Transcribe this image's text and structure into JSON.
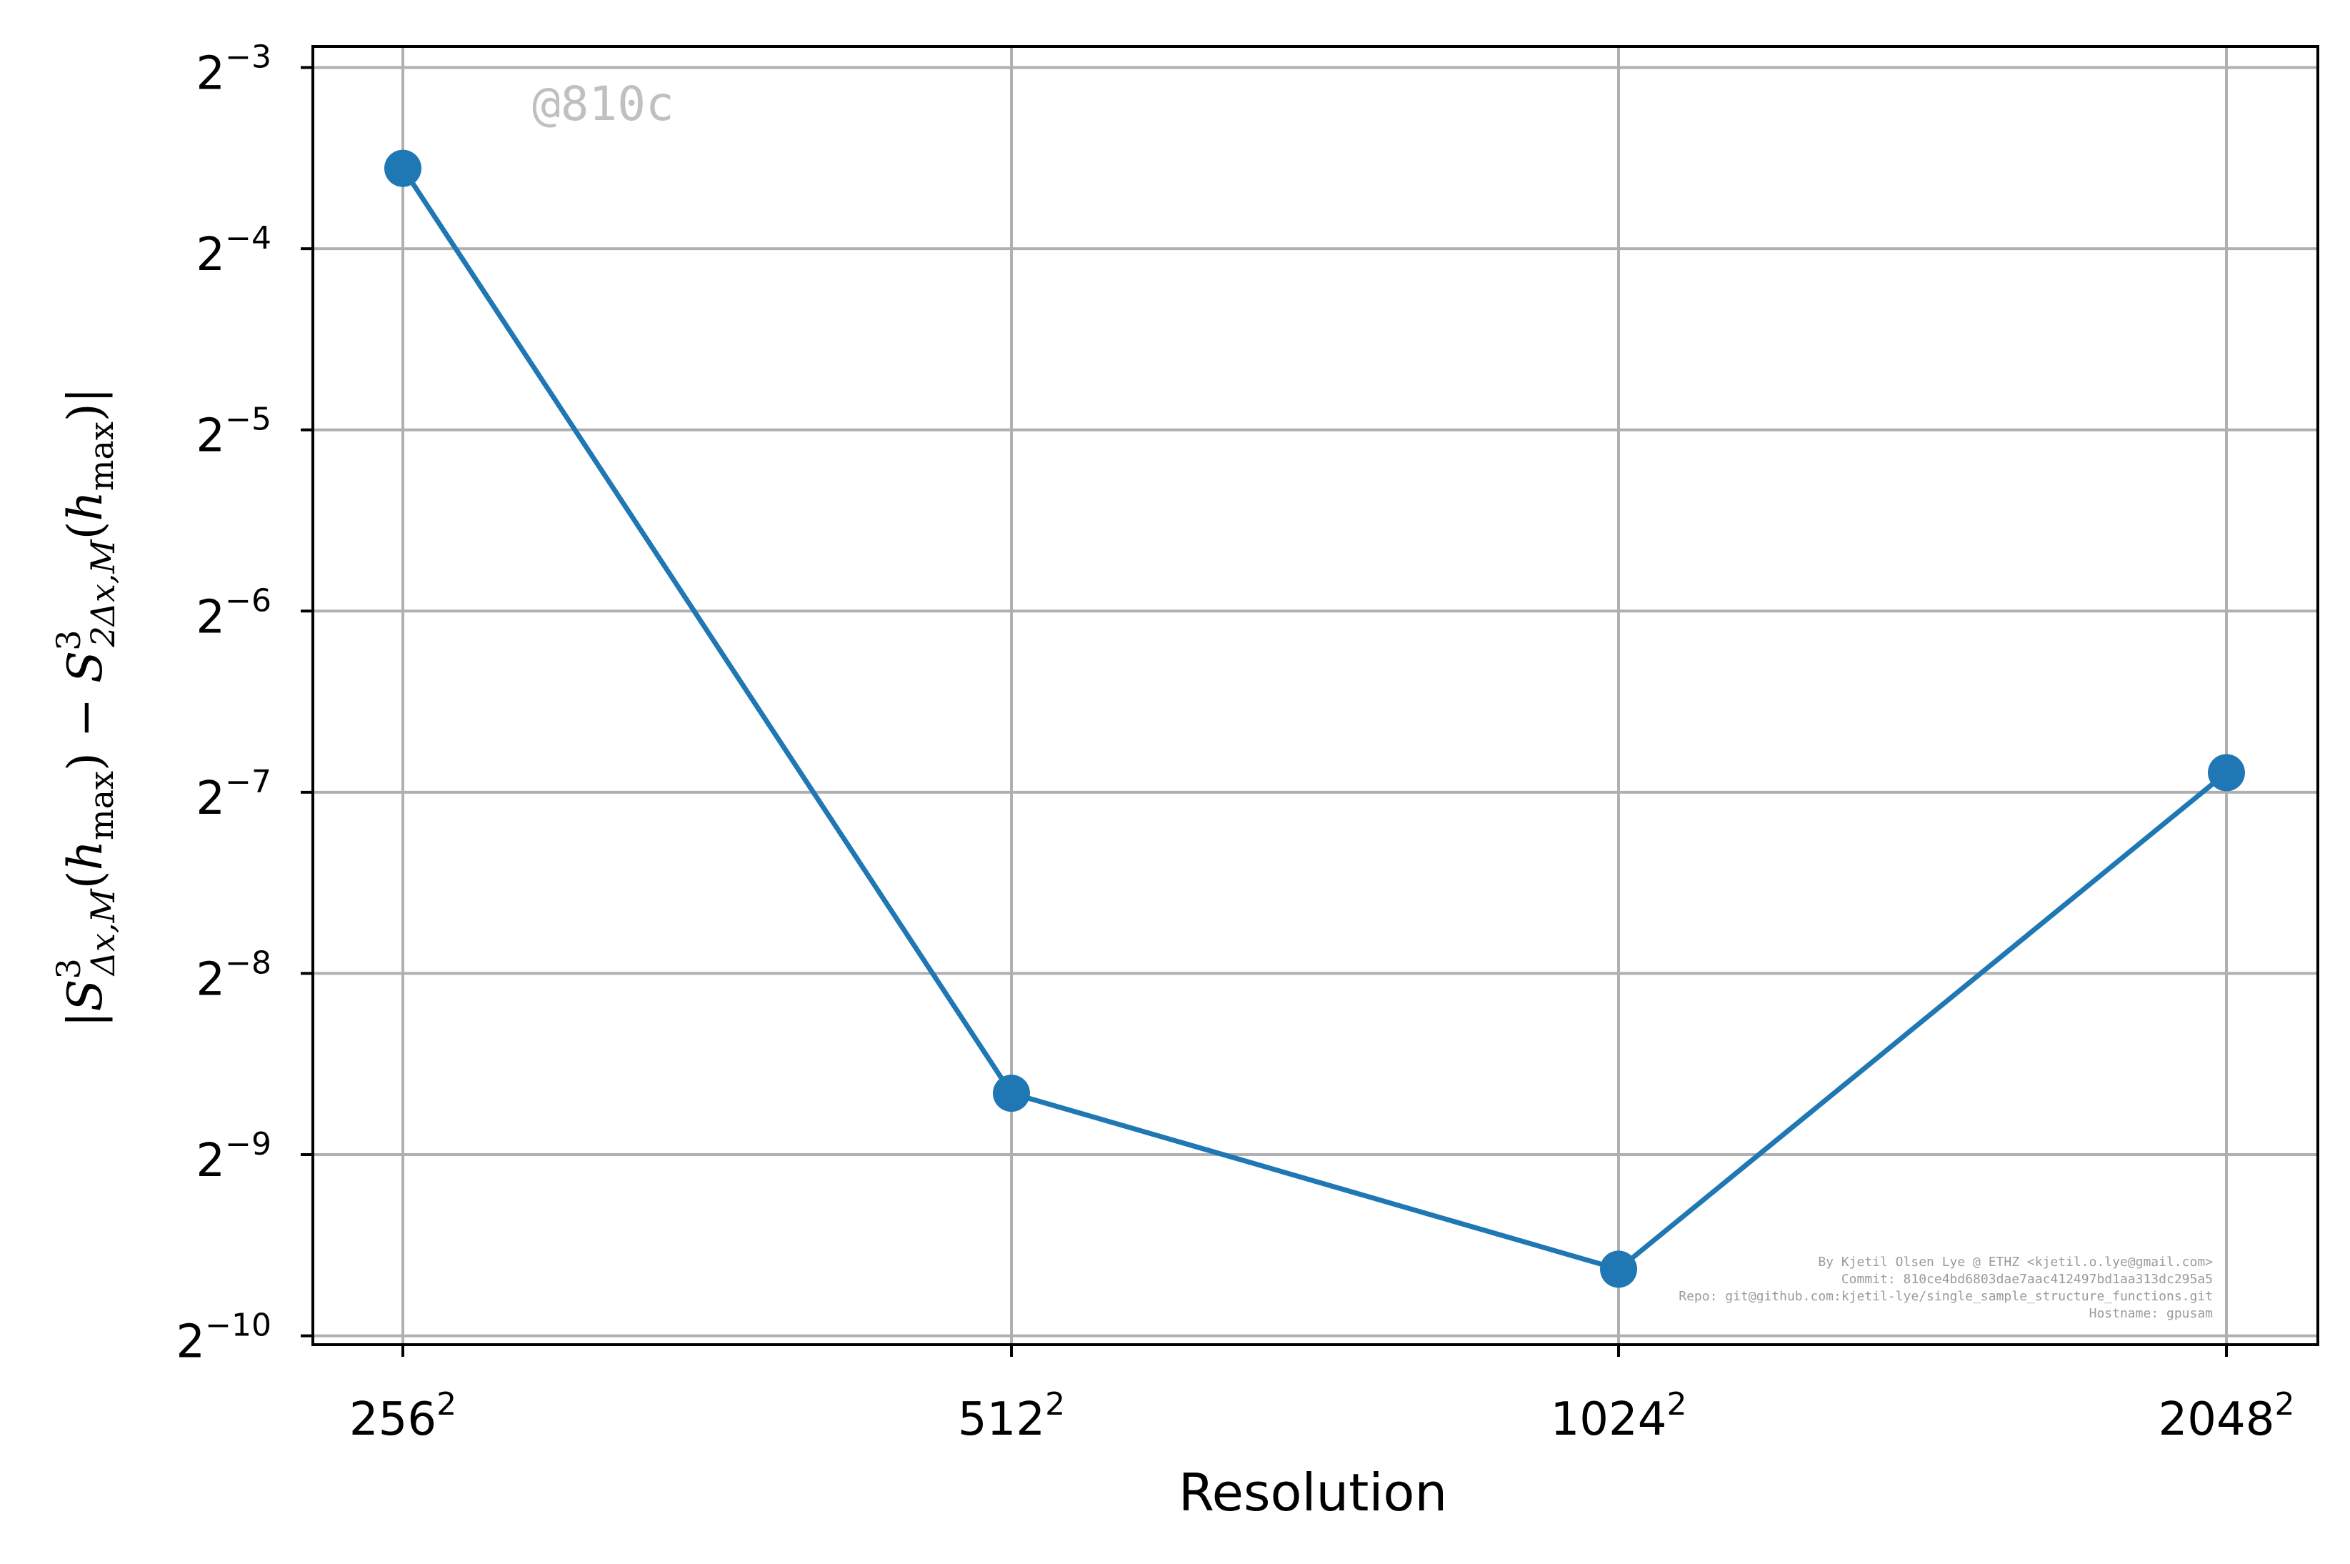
{
  "chart_data": {
    "type": "line",
    "title": "",
    "xlabel": "Resolution",
    "ylabel": "|S³_{Δx,M}(h_max) − S³_{2Δx,M}(h_max)|",
    "x_scale": "categorical",
    "y_scale": "log2",
    "categories": [
      "256²",
      "512²",
      "1024²",
      "2048²"
    ],
    "x_tick_labels": [
      {
        "base": "256",
        "exp": "2"
      },
      {
        "base": "512",
        "exp": "2"
      },
      {
        "base": "1024",
        "exp": "2"
      },
      {
        "base": "2048",
        "exp": "2"
      }
    ],
    "series": [
      {
        "values": [
          0.085,
          0.00247,
          0.00126,
          0.00842
        ],
        "color": "#1f77b4",
        "marker": "circle"
      }
    ],
    "ylim": [
      0.000944,
      0.1355
    ],
    "y_ticks": [
      {
        "value": 0.125,
        "base": "2",
        "exp": "−3"
      },
      {
        "value": 0.0625,
        "base": "2",
        "exp": "−4"
      },
      {
        "value": 0.03125,
        "base": "2",
        "exp": "−5"
      },
      {
        "value": 0.015625,
        "base": "2",
        "exp": "−6"
      },
      {
        "value": 0.0078125,
        "base": "2",
        "exp": "−7"
      },
      {
        "value": 0.00390625,
        "base": "2",
        "exp": "−8"
      },
      {
        "value": 0.001953125,
        "base": "2",
        "exp": "−9"
      },
      {
        "value": 0.0009765625,
        "base": "2",
        "exp": "−10"
      }
    ],
    "grid": true,
    "grid_color": "#b0b0b0"
  },
  "watermark": "@810c",
  "credits": [
    "By Kjetil Olsen Lye @ ETHZ <kjetil.o.lye@gmail.com>",
    "Commit: 810ce4bd6803dae7aac412497bd1aa313dc295a5",
    "Repo: git@github.com:kjetil-lye/single_sample_structure_functions.git",
    "Hostname: gpusam"
  ]
}
